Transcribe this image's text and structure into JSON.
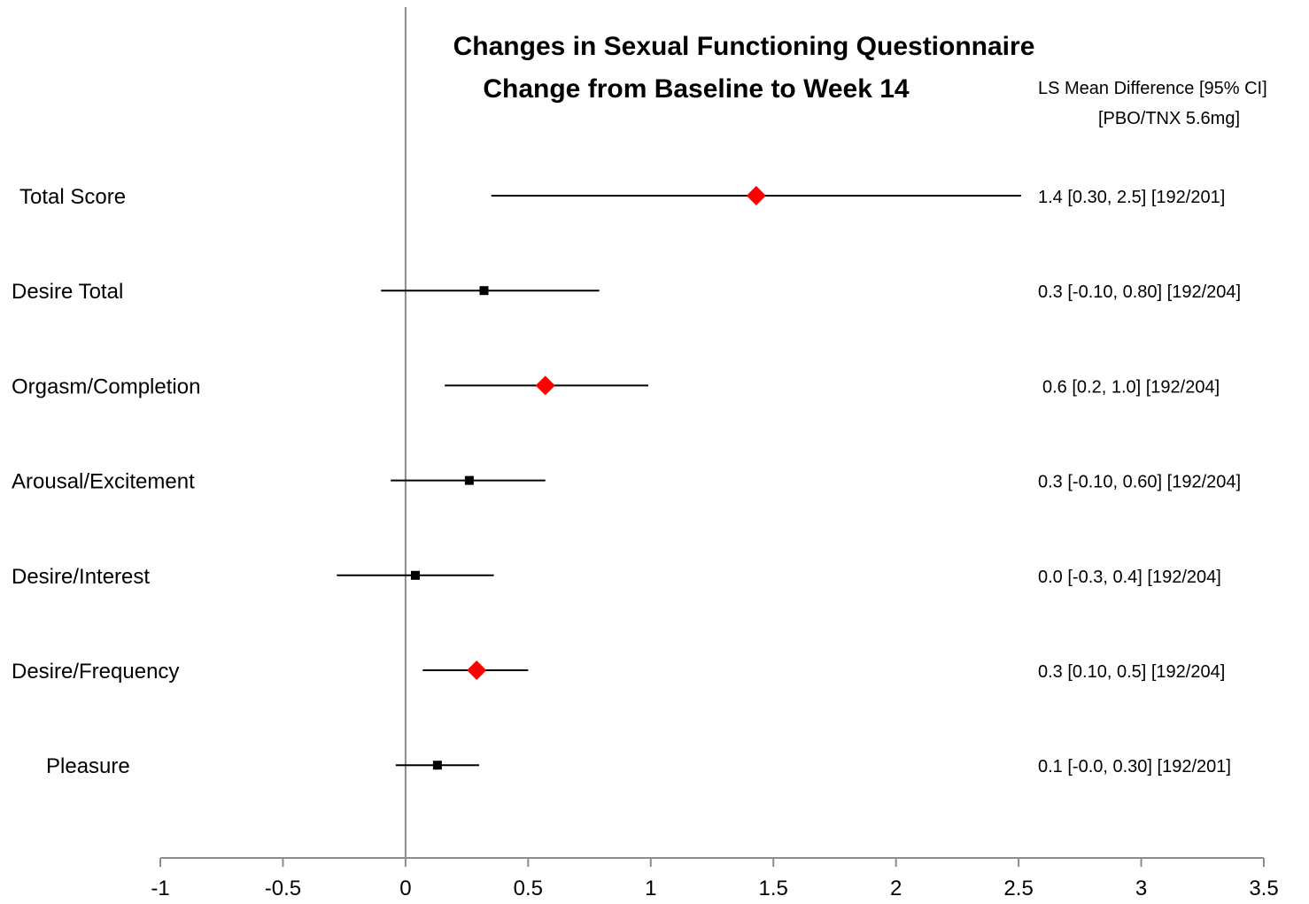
{
  "chart_data": {
    "type": "scatter",
    "title_lines": [
      "Changes in Sexual Functioning Questionnaire",
      "Change from Baseline to Week 14"
    ],
    "column_header_lines": [
      "LS Mean Difference [95% CI]",
      "[PBO/TNX 5.6mg]"
    ],
    "xlim": [
      -1,
      3.5
    ],
    "xticks": [
      "-1",
      "-0.5",
      "0",
      "0.5",
      "1",
      "1.5",
      "2",
      "2.5",
      "3",
      "3.5"
    ],
    "reference_line_x": 0,
    "marker_colors": {
      "significant": "#ff0000",
      "not_significant": "#000000"
    },
    "rows": [
      {
        "label": "Total Score",
        "estimate": 1.43,
        "ci_low": 0.35,
        "ci_high": 2.51,
        "significant": true,
        "annotation": "1.4 [0.30, 2.5]   [192/201]"
      },
      {
        "label": "Desire Total",
        "estimate": 0.32,
        "ci_low": -0.1,
        "ci_high": 0.79,
        "significant": false,
        "annotation": "0.3 [-0.10, 0.80]   [192/204]"
      },
      {
        "label": "Orgasm/Completion",
        "estimate": 0.57,
        "ci_low": 0.16,
        "ci_high": 0.99,
        "significant": true,
        "annotation": "0.6 [0.2, 1.0]   [192/204]"
      },
      {
        "label": "Arousal/Excitement",
        "estimate": 0.26,
        "ci_low": -0.06,
        "ci_high": 0.57,
        "significant": false,
        "annotation": "0.3 [-0.10, 0.60]   [192/204]"
      },
      {
        "label": "Desire/Interest",
        "estimate": 0.04,
        "ci_low": -0.28,
        "ci_high": 0.36,
        "significant": false,
        "annotation": "0.0 [-0.3, 0.4]   [192/204]"
      },
      {
        "label": "Desire/Frequency",
        "estimate": 0.29,
        "ci_low": 0.07,
        "ci_high": 0.5,
        "significant": true,
        "annotation": "0.3 [0.10, 0.5]   [192/204]"
      },
      {
        "label": "Pleasure",
        "estimate": 0.13,
        "ci_low": -0.04,
        "ci_high": 0.3,
        "significant": false,
        "annotation": "0.1 [-0.0, 0.30]   [192/201]"
      }
    ]
  }
}
